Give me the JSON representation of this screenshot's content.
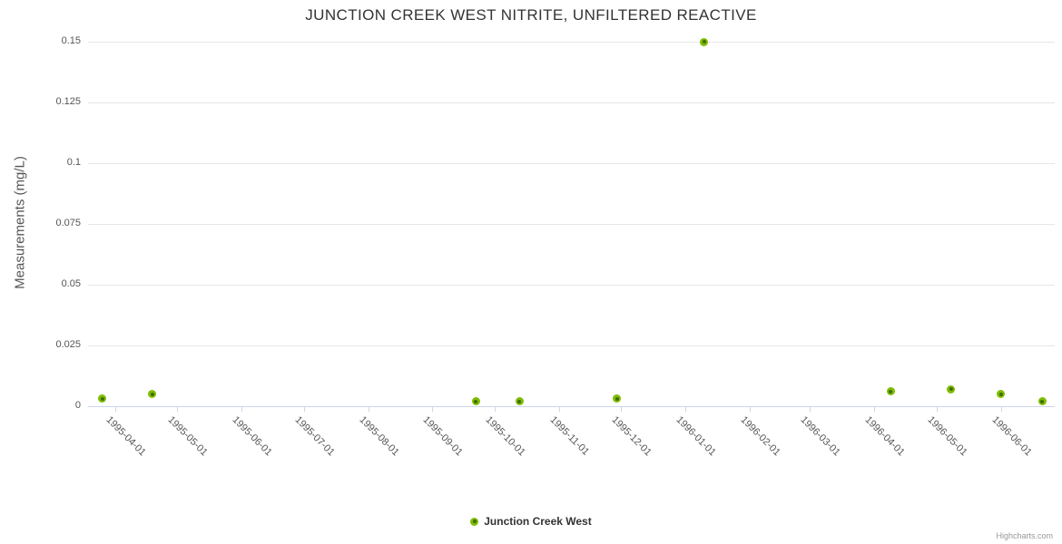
{
  "chart_data": {
    "type": "scatter",
    "title": "JUNCTION CREEK WEST NITRITE, UNFILTERED REACTIVE",
    "xlabel": "",
    "ylabel": "Measurements (mg/L)",
    "ylim": [
      0,
      0.15
    ],
    "y_ticks": [
      "0",
      "0.025",
      "0.05",
      "0.075",
      "0.1",
      "0.125",
      "0.15"
    ],
    "x_ticks": [
      "1995-04-01",
      "1995-05-01",
      "1995-06-01",
      "1995-07-01",
      "1995-08-01",
      "1995-09-01",
      "1995-10-01",
      "1995-11-01",
      "1995-12-01",
      "1996-01-01",
      "1996-02-01",
      "1996-03-01",
      "1996-04-01",
      "1996-05-01",
      "1996-06-01"
    ],
    "x_range": [
      "1995-03-19",
      "1996-06-27"
    ],
    "grid": "horizontal-only",
    "legend_position": "bottom-center",
    "series": [
      {
        "name": "Junction Creek West",
        "marker_color": "#80bc00",
        "marker_center_color": "#3d6f00",
        "points": [
          {
            "date": "1995-03-26",
            "value": 0.003
          },
          {
            "date": "1995-04-19",
            "value": 0.005
          },
          {
            "date": "1995-09-22",
            "value": 0.002
          },
          {
            "date": "1995-10-13",
            "value": 0.002
          },
          {
            "date": "1995-11-29",
            "value": 0.003
          },
          {
            "date": "1996-01-10",
            "value": 0.15
          },
          {
            "date": "1996-04-09",
            "value": 0.006
          },
          {
            "date": "1996-05-08",
            "value": 0.007
          },
          {
            "date": "1996-06-01",
            "value": 0.005
          },
          {
            "date": "1996-06-21",
            "value": 0.002
          }
        ]
      }
    ]
  },
  "credits": {
    "label": "Highcharts.com"
  },
  "colors": {
    "grid_line": "#e6e6e6",
    "axis_line": "#ccd6eb",
    "title_text": "#333333",
    "axis_label_text": "#555555",
    "marker_outer": "#80bc00",
    "marker_center": "#3d6f00",
    "legend_text": "#333333",
    "credits_text": "#999999"
  }
}
